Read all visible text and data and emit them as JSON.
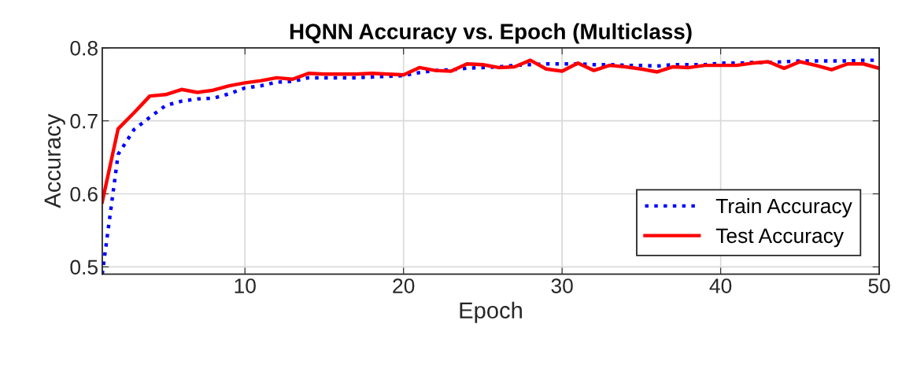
{
  "chart_data": {
    "type": "line",
    "title": "HQNN Accuracy vs. Epoch (Multiclass)",
    "xlabel": "Epoch",
    "ylabel": "Accuracy",
    "x": [
      1,
      2,
      3,
      4,
      5,
      6,
      7,
      8,
      9,
      10,
      11,
      12,
      13,
      14,
      15,
      16,
      17,
      18,
      19,
      20,
      21,
      22,
      23,
      24,
      25,
      26,
      27,
      28,
      29,
      30,
      31,
      32,
      33,
      34,
      35,
      36,
      37,
      38,
      39,
      40,
      41,
      42,
      43,
      44,
      45,
      46,
      47,
      48,
      49,
      50
    ],
    "series": [
      {
        "name": "Train Accuracy",
        "color": "#0000ff",
        "line_style": "dotted",
        "values": [
          0.49,
          0.654,
          0.688,
          0.705,
          0.721,
          0.727,
          0.73,
          0.731,
          0.737,
          0.745,
          0.748,
          0.753,
          0.754,
          0.759,
          0.759,
          0.759,
          0.759,
          0.76,
          0.761,
          0.762,
          0.766,
          0.769,
          0.77,
          0.772,
          0.773,
          0.774,
          0.776,
          0.777,
          0.778,
          0.778,
          0.778,
          0.777,
          0.777,
          0.776,
          0.776,
          0.775,
          0.777,
          0.777,
          0.777,
          0.779,
          0.779,
          0.78,
          0.78,
          0.781,
          0.782,
          0.782,
          0.782,
          0.782,
          0.783,
          0.783
        ]
      },
      {
        "name": "Test Accuracy",
        "color": "#ff0000",
        "line_style": "solid",
        "values": [
          0.589,
          0.689,
          0.711,
          0.734,
          0.736,
          0.743,
          0.739,
          0.742,
          0.748,
          0.752,
          0.755,
          0.759,
          0.757,
          0.765,
          0.764,
          0.764,
          0.764,
          0.765,
          0.764,
          0.763,
          0.773,
          0.769,
          0.768,
          0.778,
          0.777,
          0.773,
          0.774,
          0.783,
          0.771,
          0.768,
          0.779,
          0.769,
          0.776,
          0.774,
          0.771,
          0.767,
          0.774,
          0.773,
          0.776,
          0.776,
          0.776,
          0.779,
          0.781,
          0.772,
          0.781,
          0.776,
          0.77,
          0.778,
          0.778,
          0.772
        ]
      }
    ],
    "xlim": [
      1,
      50
    ],
    "ylim": [
      0.49,
      0.8
    ],
    "xticks": [
      10,
      20,
      30,
      40,
      50
    ],
    "yticks": [
      0.5,
      0.6,
      0.7,
      0.8
    ],
    "grid": true,
    "legend": "bottom right",
    "marker": "none"
  }
}
